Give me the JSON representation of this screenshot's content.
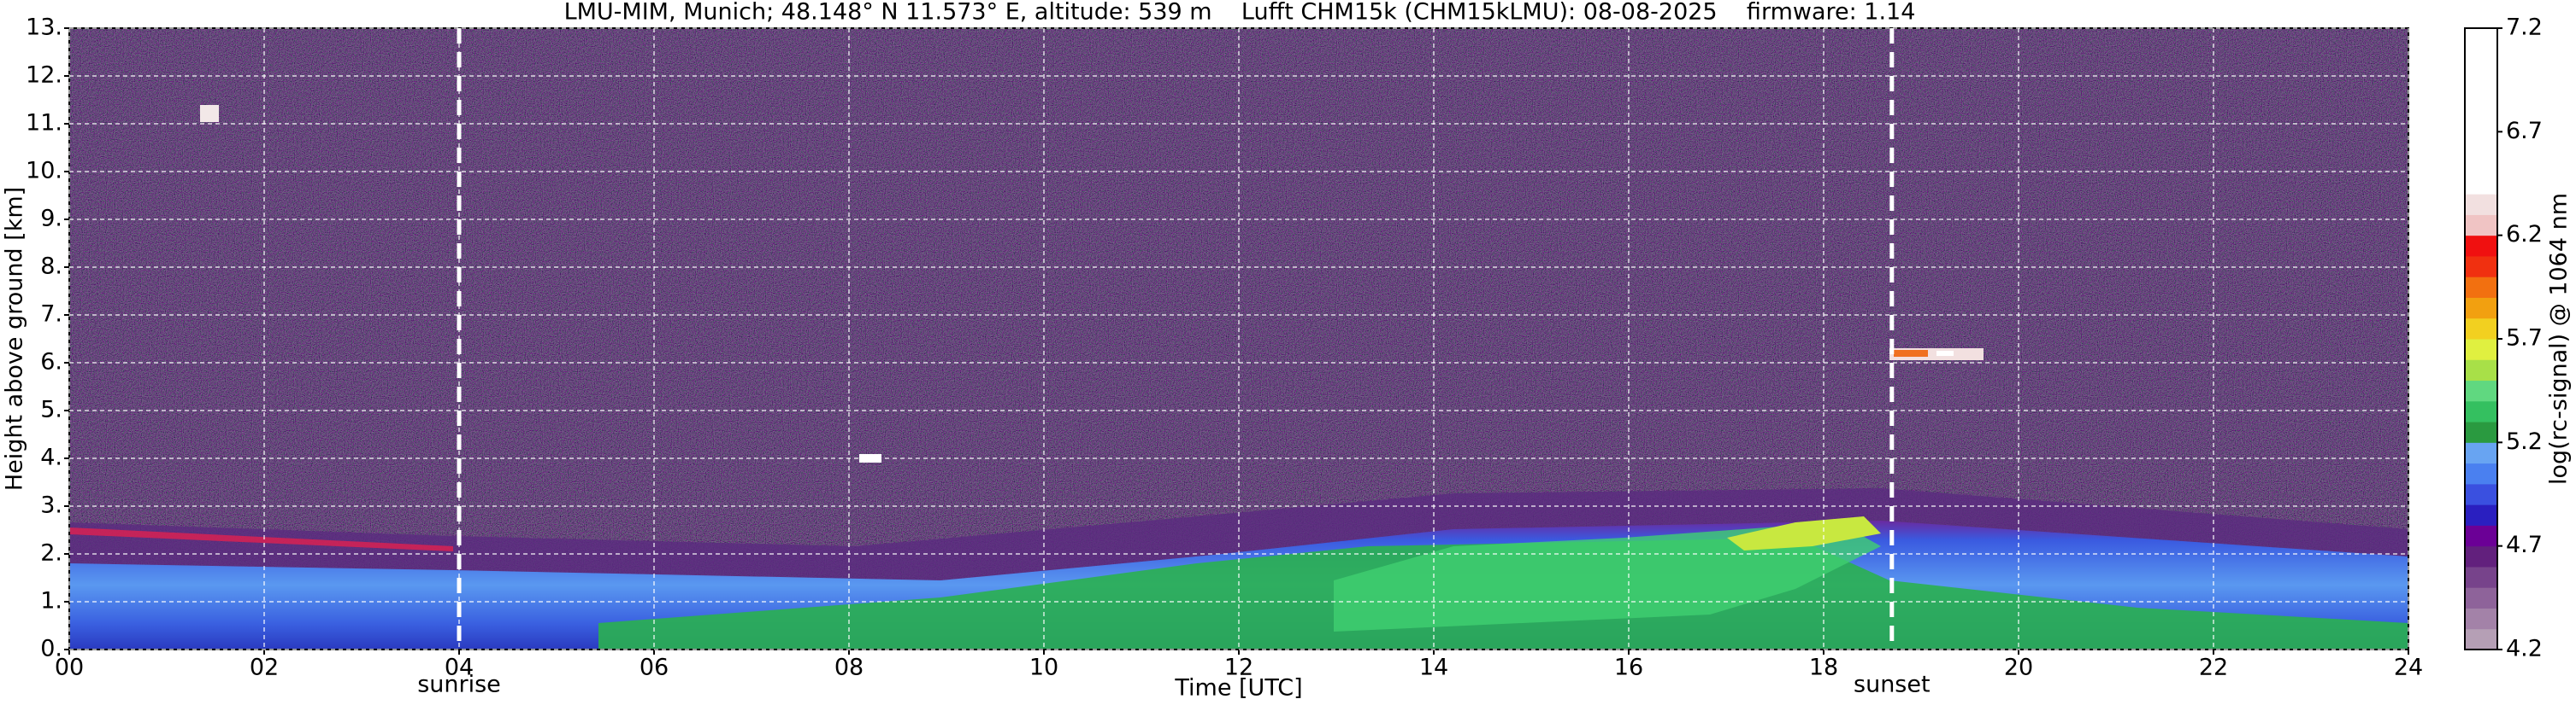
{
  "chart_data": {
    "type": "heatmap",
    "title": "LMU-MIM, Munich; 48.148° N 11.573° E, altitude: 539 m    Lufft CHM15k (CHM15kLMU): 08-08-2025    firmware: 1.14",
    "xlabel": "Time [UTC]",
    "ylabel": "Height above ground [km]",
    "xlim": [
      0,
      24
    ],
    "ylim": [
      0,
      13
    ],
    "xticks": [
      {
        "value": 0,
        "label": "00"
      },
      {
        "value": 2,
        "label": "02"
      },
      {
        "value": 4,
        "label": "04"
      },
      {
        "value": 6,
        "label": "06"
      },
      {
        "value": 8,
        "label": "08"
      },
      {
        "value": 10,
        "label": "10"
      },
      {
        "value": 12,
        "label": "12"
      },
      {
        "value": 14,
        "label": "14"
      },
      {
        "value": 16,
        "label": "16"
      },
      {
        "value": 18,
        "label": "18"
      },
      {
        "value": 20,
        "label": "20"
      },
      {
        "value": 22,
        "label": "22"
      },
      {
        "value": 24,
        "label": "24"
      }
    ],
    "yticks": [
      {
        "value": 0,
        "label": "0."
      },
      {
        "value": 1,
        "label": "1."
      },
      {
        "value": 2,
        "label": "2."
      },
      {
        "value": 3,
        "label": "3."
      },
      {
        "value": 4,
        "label": "4."
      },
      {
        "value": 5,
        "label": "5."
      },
      {
        "value": 6,
        "label": "6."
      },
      {
        "value": 7,
        "label": "7."
      },
      {
        "value": 8,
        "label": "8."
      },
      {
        "value": 9,
        "label": "9."
      },
      {
        "value": 10,
        "label": "10."
      },
      {
        "value": 11,
        "label": "11."
      },
      {
        "value": 12,
        "label": "12."
      },
      {
        "value": 13,
        "label": "13."
      }
    ],
    "grid": true,
    "vlines": [
      {
        "value": 4.0,
        "label": "sunrise"
      },
      {
        "value": 18.7,
        "label": "sunset"
      }
    ],
    "colorbar": {
      "label": "log(rc-signal) @ 1064 nm",
      "clim": [
        4.2,
        7.2
      ],
      "ticks": [
        4.2,
        4.7,
        5.2,
        5.7,
        6.2,
        6.7,
        7.2
      ],
      "colormap": [
        "#b59fb5",
        "#a382a8",
        "#8e639a",
        "#77438b",
        "#62207d",
        "#6b0096",
        "#2a1fc0",
        "#3a50e0",
        "#4a80f0",
        "#68a4f2",
        "#2a9a40",
        "#34c060",
        "#60d880",
        "#a8e048",
        "#e0f040",
        "#f2d020",
        "#f2a010",
        "#f27010",
        "#f03010",
        "#f01010",
        "#f0c4c4",
        "#f2e0e0",
        "#ffffff",
        "#ffffff",
        "#ffffff",
        "#ffffff",
        "#ffffff",
        "#ffffff",
        "#ffffff",
        "#ffffff"
      ]
    }
  }
}
